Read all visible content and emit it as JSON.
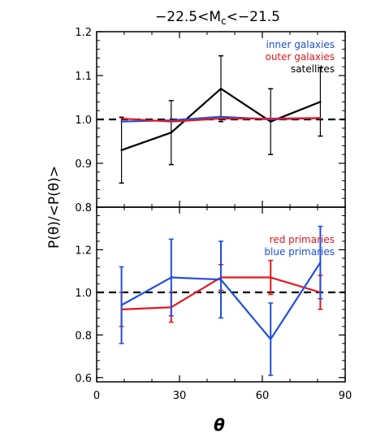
{
  "chart_data": [
    {
      "type": "line",
      "panel": "top",
      "title": "−22.5<M",
      "title_sub": "c",
      "title_tail": "<−21.5",
      "ylabel": "",
      "xlim": [
        0,
        90
      ],
      "ylim": [
        0.8,
        1.2
      ],
      "yticks": [
        "0.8",
        "0.9",
        "1.0",
        "1.1",
        "1.2"
      ],
      "yticks_values": [
        0.8,
        0.9,
        1.0,
        1.1,
        1.2
      ],
      "reference_line": 1.0,
      "legend_placement": "top-right",
      "series": [
        {
          "name": "satellites",
          "color": "#000000",
          "x": [
            9,
            27,
            45,
            63,
            81
          ],
          "y": [
            0.93,
            0.97,
            1.07,
            0.995,
            1.04
          ],
          "yerr": [
            0.075,
            0.073,
            0.075,
            0.075,
            0.078
          ]
        },
        {
          "name": "inner galaxies",
          "color": "#1f4fe0",
          "x": [
            9,
            27,
            45,
            63,
            81
          ],
          "y": [
            0.995,
            0.998,
            1.006,
            1.0,
            1.003
          ],
          "yerr": []
        },
        {
          "name": "outer galaxies",
          "color": "#e8161c",
          "x": [
            9,
            27,
            45,
            63,
            81
          ],
          "y": [
            1.002,
            0.995,
            1.002,
            1.002,
            1.003
          ],
          "yerr": []
        }
      ]
    },
    {
      "type": "line",
      "panel": "bottom",
      "xlabel": "θ",
      "ylabel": "P(θ)/<P(θ)>",
      "xlim": [
        0,
        90
      ],
      "ylim": [
        0.58,
        1.4
      ],
      "xticks": [
        "0",
        "30",
        "60",
        "90"
      ],
      "xticks_values": [
        0,
        30,
        60,
        90
      ],
      "yticks": [
        "0.6",
        "0.8",
        "1.0",
        "1.2"
      ],
      "yticks_values": [
        0.6,
        0.8,
        1.0,
        1.2
      ],
      "reference_line": 1.0,
      "legend_placement": "top-right",
      "series": [
        {
          "name": "red primaries",
          "color": "#e8161c",
          "x": [
            9,
            27,
            45,
            63,
            81
          ],
          "y": [
            0.92,
            0.93,
            1.07,
            1.07,
            1.0
          ],
          "yerr": [
            0.08,
            0.07,
            0.06,
            0.08,
            0.08
          ]
        },
        {
          "name": "blue primaries",
          "color": "#1f4fe0",
          "x": [
            9,
            27,
            45,
            63,
            81
          ],
          "y": [
            0.94,
            1.07,
            1.06,
            0.78,
            1.14
          ],
          "yerr": [
            0.18,
            0.18,
            0.18,
            0.17,
            0.17
          ]
        }
      ]
    }
  ]
}
